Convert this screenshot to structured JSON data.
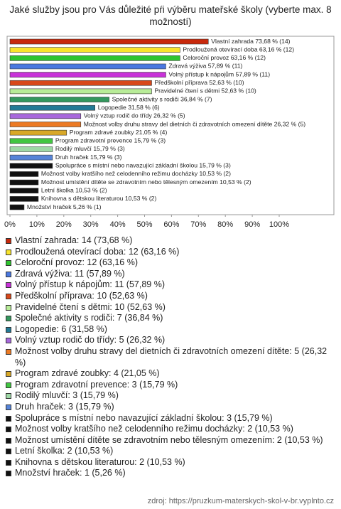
{
  "chart_data": {
    "type": "hbar",
    "title": "Jaké služby jsou pro Vás důležité pŕi výběru mateřské školy (vyberte max. 8 možností)",
    "values": [
      73.68,
      63.16,
      63.16,
      57.89,
      57.89,
      52.63,
      52.63,
      36.84,
      31.58,
      26.32,
      26.32,
      21.05,
      15.79,
      15.79,
      15.79,
      15.79,
      10.53,
      10.53,
      10.53,
      10.53,
      5.26
    ],
    "value_labels": [
      "Vlastní zahrada 73,68 % (14)",
      "Prodloužená otevírací doba 63,16 % (12)",
      "Celoroční provoz 63,16 % (12)",
      "Zdravá výživa 57,89 % (11)",
      "Volný přístup k nápojům 57,89 % (11)",
      "Předškolní příprava 52,63 % (10)",
      "Pravidelné čtení s dětmi 52,63 % (10)",
      "Společné aktivity s rodiči 36,84 % (7)",
      "Logopedie 31,58 % (6)",
      "Volný vztup rodič do třídy 26,32 % (5)",
      "Možnost volby druhu stravy del dietních či zdravotních omezení dítěte 26,32 % (5)",
      "Program zdravé zoubky 21,05 % (4)",
      "Program zdravotní prevence 15,79 % (3)",
      "Rodilý mluvčí 15,79 % (3)",
      "Druh hraček 15,79 % (3)",
      "Spolupráce s místní nebo navazující základní školou 15,79 % (3)",
      "Možnost volby kratšího než celodenního režimu docházky 10,53 % (2)",
      "Možnost umístění dítěte se zdravotním nebo tělesným omezením 10,53 % (2)",
      "Letní školka 10,53 % (2)",
      "Knihovna s dětskou literaturou 10,53 % (2)",
      "Množství hraček 5,26 % (1)"
    ],
    "colors": [
      "#c8290c",
      "#f8e42c",
      "#2ec42e",
      "#4a78e0",
      "#c832d8",
      "#d8481a",
      "#b8ec98",
      "#34985e",
      "#237a96",
      "#a868dc",
      "#ec7a24",
      "#d8a828",
      "#42c642",
      "#9ed8a6",
      "#5684d8",
      "#111111",
      "#111111",
      "#111111",
      "#111111",
      "#111111",
      "#111111"
    ],
    "legend": [
      "Vlastní zahrada: 14 (73,68 %)",
      "Prodloužená otevírací doba: 12 (63,16 %)",
      "Celoroční provoz: 12 (63,16 %)",
      "Zdravá výživa: 11 (57,89 %)",
      "Volný přístup k nápojům: 11 (57,89 %)",
      "Předškolní příprava: 10 (52,63 %)",
      "Pravidelné čtení s dětmi: 10 (52,63 %)",
      "Společné aktivity s rodiči: 7 (36,84 %)",
      "Logopedie: 6 (31,58 %)",
      "Volný vztup rodič do třídy: 5 (26,32 %)",
      "Možnost volby druhu stravy del dietních či zdravotních omezení dítěte: 5 (26,32 %)",
      "Program zdravé zoubky: 4 (21,05 %)",
      "Program zdravotní prevence: 3 (15,79 %)",
      "Rodilý mluvčí: 3 (15,79 %)",
      "Druh hraček: 3 (15,79 %)",
      "Spolupráce s místní nebo navazující základní školou: 3 (15,79 %)",
      "Možnost volby kratšího než celodenního režimu docházky: 2 (10,53 %)",
      "Možnost umístění dítěte se zdravotním nebo tělesným omezením: 2 (10,53 %)",
      "Letní školka: 2 (10,53 %)",
      "Knihovna s dětskou literaturou: 2 (10,53 %)",
      "Množství hraček: 1 (5,26 %)"
    ],
    "xlim": [
      0,
      100
    ],
    "xticks": [
      {
        "value": 0,
        "label": "0%"
      },
      {
        "value": 10,
        "label": "10%"
      },
      {
        "value": 20,
        "label": "20%"
      },
      {
        "value": 30,
        "label": "30%"
      },
      {
        "value": 40,
        "label": "40%"
      },
      {
        "value": 50,
        "label": "50%"
      },
      {
        "value": 60,
        "label": "60%"
      },
      {
        "value": 70,
        "label": "70%"
      },
      {
        "value": 80,
        "label": "80%"
      },
      {
        "value": 90,
        "label": "90%"
      },
      {
        "value": 100,
        "label": "100%"
      }
    ],
    "source": "zdroj: https://pruzkum-materskych-skol-v-br.vyplnto.cz"
  }
}
